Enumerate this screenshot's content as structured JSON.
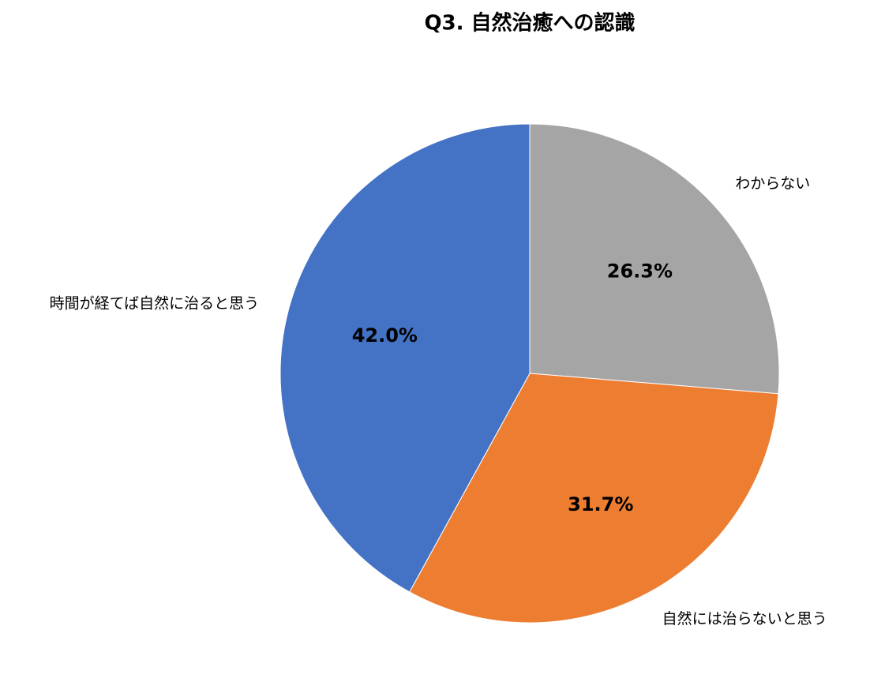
{
  "chart_data": {
    "type": "pie",
    "title": "Q3. 自然治癒への認識",
    "categories": [
      "わからない",
      "自然には治らないと思う",
      "時間が経てば自然に治ると思う"
    ],
    "values": [
      26.3,
      31.7,
      42.0
    ],
    "value_labels": [
      "26.3%",
      "31.7%",
      "42.0%"
    ],
    "colors": [
      "#a5a5a5",
      "#ed7d31",
      "#4472c4"
    ]
  }
}
